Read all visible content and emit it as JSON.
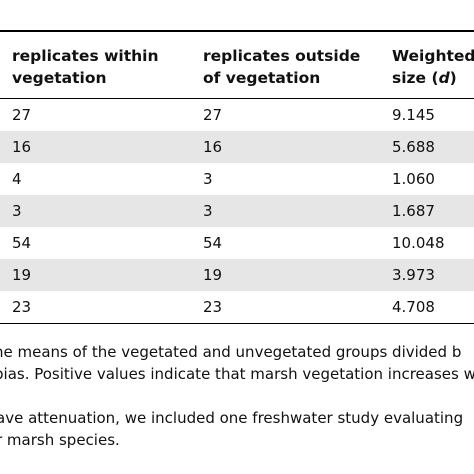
{
  "table": {
    "headers": [
      [
        "replicates within",
        "vegetation"
      ],
      [
        "replicates outside",
        "of vegetation"
      ],
      [
        "Weighted",
        "size (",
        "d",
        ")"
      ]
    ],
    "rows": [
      [
        "27",
        "27",
        "9.145"
      ],
      [
        "16",
        "16",
        "5.688"
      ],
      [
        "4",
        "3",
        "1.060"
      ],
      [
        "3",
        "3",
        "1.687"
      ],
      [
        "54",
        "54",
        "10.048"
      ],
      [
        "19",
        "19",
        "3.973"
      ],
      [
        "23",
        "23",
        "4.708"
      ]
    ]
  },
  "footnotes": [
    "he means of the vegetated and unvegetated groups divided b",
    "bias. Positive values indicate that marsh vegetation increases w",
    "ave attenuation, we included one freshwater study evaluating",
    "r marsh species."
  ]
}
